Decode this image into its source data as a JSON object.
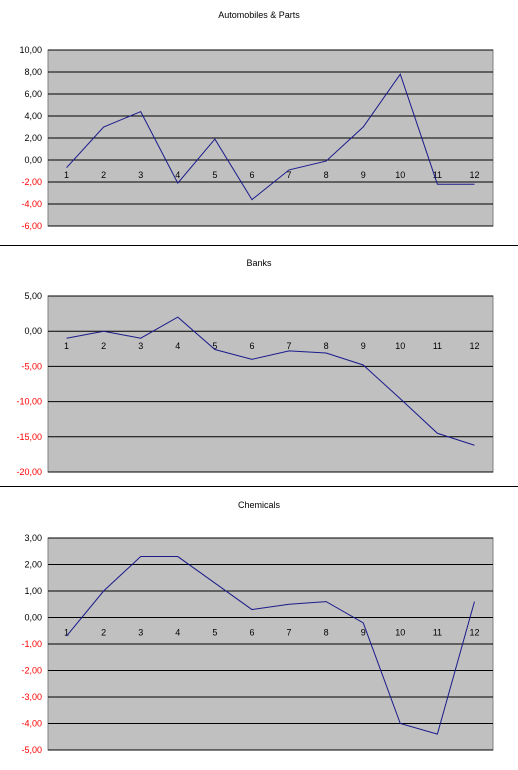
{
  "chart_data": [
    {
      "type": "line",
      "title": "Automobiles & Parts",
      "categories": [
        "1",
        "2",
        "3",
        "4",
        "5",
        "6",
        "7",
        "8",
        "9",
        "10",
        "11",
        "12"
      ],
      "series": [
        {
          "values": [
            -0.7,
            3.0,
            4.4,
            -2.1,
            1.9,
            -3.6,
            -0.9,
            -0.1,
            3.0,
            7.8,
            -2.2,
            -2.2
          ]
        }
      ],
      "ylim": [
        -6,
        10
      ],
      "yticks": [
        "10,00",
        "8,00",
        "6,00",
        "4,00",
        "2,00",
        "0,00",
        "-2,00",
        "-4,00",
        "-6,00"
      ],
      "line_color": "#1a1a8c",
      "plot_bg": "#c0c0c0",
      "negative_tick_color": "#ff0000",
      "grid": true
    },
    {
      "type": "line",
      "title": "Banks",
      "categories": [
        "1",
        "2",
        "3",
        "4",
        "5",
        "6",
        "7",
        "8",
        "9",
        "10",
        "11",
        "12"
      ],
      "series": [
        {
          "values": [
            -1.0,
            0.0,
            -1.0,
            2.0,
            -2.6,
            -4.0,
            -2.8,
            -3.1,
            -4.8,
            -9.6,
            -14.5,
            -16.2
          ]
        }
      ],
      "ylim": [
        -20,
        5
      ],
      "yticks": [
        "5,00",
        "0,00",
        "-5,00",
        "-10,00",
        "-15,00",
        "-20,00"
      ],
      "line_color": "#1a1a8c",
      "plot_bg": "#c0c0c0",
      "negative_tick_color": "#ff0000",
      "grid": true
    },
    {
      "type": "line",
      "title": "Chemicals",
      "categories": [
        "1",
        "2",
        "3",
        "4",
        "5",
        "6",
        "7",
        "8",
        "9",
        "10",
        "11",
        "12"
      ],
      "series": [
        {
          "values": [
            -0.7,
            1.0,
            2.3,
            2.3,
            1.3,
            0.3,
            0.5,
            0.6,
            -0.2,
            -4.0,
            -4.4,
            0.6
          ]
        }
      ],
      "ylim": [
        -5,
        3
      ],
      "yticks": [
        "3,00",
        "2,00",
        "1,00",
        "0,00",
        "-1,00",
        "-2,00",
        "-3,00",
        "-4,00",
        "-5,00"
      ],
      "line_color": "#1a1a8c",
      "plot_bg": "#c0c0c0",
      "negative_tick_color": "#ff0000",
      "grid": true
    }
  ]
}
